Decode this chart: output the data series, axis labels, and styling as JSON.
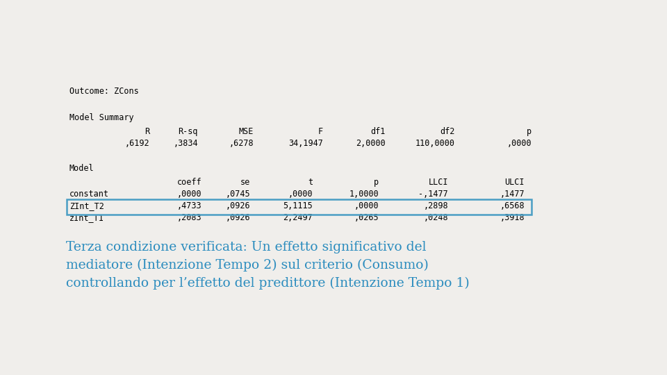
{
  "background_color": "#f0eeeb",
  "background_color_inner": "#f0eeeb",
  "outcome_label": "Outcome: ZCons",
  "model_summary_label": "Model Summary",
  "model_summary_headers": [
    "R",
    "R-sq",
    "MSE",
    "F",
    "df1",
    "df2",
    "p"
  ],
  "model_summary_values": [
    ",6192",
    ",3834",
    ",6278",
    "34,1947",
    "2,0000",
    "110,0000",
    ",0000"
  ],
  "model_label": "Model",
  "model_headers": [
    "",
    "coeff",
    "se",
    "t",
    "p",
    "LLCI",
    "ULCI"
  ],
  "model_rows": [
    [
      "constant",
      ",0000",
      ",0745",
      ",0000",
      "1,0000",
      "-,1477",
      ",1477"
    ],
    [
      "ZInt_T2",
      ",4733",
      ",0926",
      "5,1115",
      ",0000",
      ",2898",
      ",6568"
    ],
    [
      "zInt_T1",
      ",2083",
      ",0926",
      "2,2497",
      ",0265",
      ",0248",
      ",3918"
    ]
  ],
  "highlighted_row_index": 1,
  "highlight_border": "#4A9EC4",
  "annotation_text": "Terza condizione verificata: Un effetto significativo del\nmediatore (Intenzione Tempo 2) sul criterio (Consumo)\ncontrollando per l’effetto del predittore (Intenzione Tempo 1)",
  "annotation_color": "#2B8CBE",
  "mono_fontsize": 8.5,
  "annot_fontsize": 13.5
}
